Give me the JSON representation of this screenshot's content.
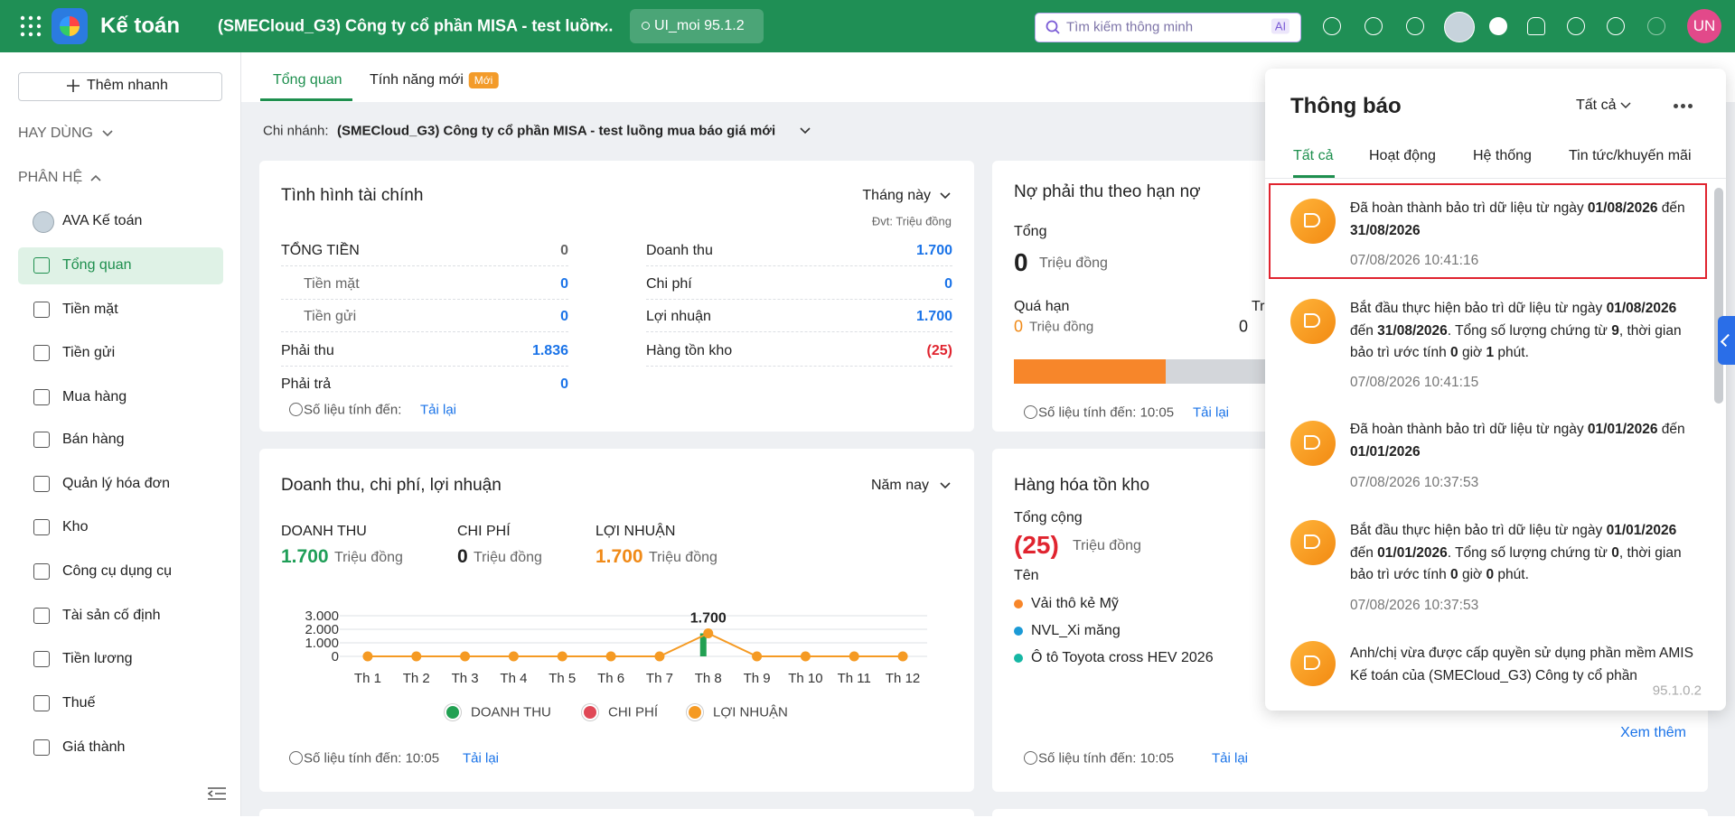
{
  "topbar": {
    "app_name": "Kế toán",
    "company": "(SMECloud_G3) Công ty cổ phần MISA - test luồn...",
    "version": "UI_moi 95.1.2",
    "search_placeholder": "Tìm kiếm thông minh",
    "ai_badge": "AI",
    "avatar": "UN"
  },
  "sidebar": {
    "quick_add": "Thêm nhanh",
    "frequent": "HAY DÙNG",
    "modules": "PHÂN HỆ",
    "items": [
      "AVA Kế toán",
      "Tổng quan",
      "Tiền mặt",
      "Tiền gửi",
      "Mua hàng",
      "Bán hàng",
      "Quản lý hóa đơn",
      "Kho",
      "Công cụ dụng cụ",
      "Tài sản cố định",
      "Tiền lương",
      "Thuế",
      "Giá thành"
    ],
    "active": 1
  },
  "tabs": {
    "items": [
      "Tổng quan",
      "Tính năng mới"
    ],
    "new_badge": "Mới"
  },
  "branch": {
    "label": "Chi nhánh:",
    "value": "(SMECloud_G3) Công ty cổ phần MISA - test luồng mua báo giá mới"
  },
  "finance": {
    "title": "Tình hình tài chính",
    "period": "Tháng này",
    "unit": "Đvt: Triệu đồng",
    "left": [
      {
        "label": "TỔNG TIỀN",
        "value": "0",
        "color": "#666666"
      },
      {
        "label": "Tiền mặt",
        "value": "0",
        "color": "#1a73e8",
        "sub": true
      },
      {
        "label": "Tiền gửi",
        "value": "0",
        "color": "#1a73e8",
        "sub": true
      },
      {
        "label": "Phải thu",
        "value": "1.836",
        "color": "#1a73e8"
      },
      {
        "label": "Phải trả",
        "value": "0",
        "color": "#1a73e8"
      }
    ],
    "right": [
      {
        "label": "Doanh thu",
        "value": "1.700",
        "color": "#1a73e8"
      },
      {
        "label": "Chi phí",
        "value": "0",
        "color": "#1a73e8"
      },
      {
        "label": "Lợi nhuận",
        "value": "1.700",
        "color": "#1a73e8"
      },
      {
        "label": "Hàng tồn kho",
        "value": "(25)",
        "color": "#e0242f"
      }
    ],
    "footer": "Số liệu tính đến:",
    "reload": "Tải lại"
  },
  "receivable": {
    "title": "Nợ phải thu theo hạn nợ",
    "total_label": "Tổng",
    "total": "0",
    "unit": "Triệu đồng",
    "overdue_label": "Quá hạn",
    "overdue": "0",
    "overdue_unit": "Triệu đồng",
    "in_term_label": "Tr",
    "in_term": "0",
    "footer": "Số liệu tính đến: 10:05",
    "reload": "Tải lại"
  },
  "revenue": {
    "title": "Doanh thu, chi phí, lợi nhuận",
    "period": "Năm nay",
    "kpis": [
      {
        "label": "DOANH THU",
        "value": "1.700",
        "unit": "Triệu đồng",
        "color": "#1e9e57"
      },
      {
        "label": "CHI PHÍ",
        "value": "0",
        "unit": "Triệu đồng",
        "color": "#212121"
      },
      {
        "label": "LỢI NHUẬN",
        "value": "1.700",
        "unit": "Triệu đồng",
        "color": "#f08a18"
      }
    ],
    "footer": "Số liệu tính đến: 10:05",
    "reload": "Tải lại"
  },
  "chart_data": {
    "type": "combo",
    "categories": [
      "Th 1",
      "Th 2",
      "Th 3",
      "Th 4",
      "Th 5",
      "Th 6",
      "Th 7",
      "Th 8",
      "Th 9",
      "Th 10",
      "Th 11",
      "Th 12"
    ],
    "series": [
      {
        "name": "DOANH THU",
        "color": "#21a052",
        "type": "bar",
        "values": [
          0,
          0,
          0,
          0,
          0,
          0,
          0,
          1700,
          0,
          0,
          0,
          0
        ]
      },
      {
        "name": "CHI PHÍ",
        "color": "#e04856",
        "type": "bar",
        "values": [
          0,
          0,
          0,
          0,
          0,
          0,
          0,
          0,
          0,
          0,
          0,
          0
        ]
      },
      {
        "name": "LỢI NHUẬN",
        "color": "#f59a23",
        "type": "line",
        "values": [
          0,
          0,
          0,
          0,
          0,
          0,
          0,
          1700,
          0,
          0,
          0,
          0
        ],
        "value_labels": [
          null,
          null,
          null,
          null,
          null,
          null,
          null,
          "1.700",
          null,
          null,
          null,
          null
        ]
      }
    ],
    "ylim": [
      0,
      3000
    ],
    "yticks": [
      0,
      {
        "value": 1000,
        "label": "1.000"
      },
      {
        "value": 2000,
        "label": "2.000"
      },
      {
        "value": 3000,
        "label": "3.000"
      }
    ],
    "grid": true
  },
  "inventory": {
    "title": "Hàng hóa tồn kho",
    "total_label": "Tổng cộng",
    "total": "(25)",
    "unit": "Triệu đồng",
    "name_header": "Tên",
    "items": [
      {
        "name": "Vải thô kẻ Mỹ",
        "color": "#f7862a"
      },
      {
        "name": "NVL_Xi măng",
        "color": "#1b9ad6"
      },
      {
        "name": "Ô tô Toyota cross HEV 2026",
        "color": "#16b7a4"
      }
    ],
    "more": "Xem thêm",
    "footer": "Số liệu tính đến: 10:05",
    "reload": "Tải lại"
  },
  "notifications": {
    "title": "Thông báo",
    "filter": "Tất cả",
    "tabs": [
      "Tất cả",
      "Hoạt động",
      "Hệ thống",
      "Tin tức/khuyến mãi"
    ],
    "active_tab": 0,
    "items": [
      {
        "segments": [
          "Đã hoàn thành bảo trì dữ liệu từ ngày ",
          "01/08/2026",
          " đến ",
          "31/08/2026"
        ],
        "time": "07/08/2026 10:41:16"
      },
      {
        "segments": [
          "Bắt đầu thực hiện bảo trì dữ liệu từ ngày ",
          "01/08/2026",
          " đến ",
          "31/08/2026",
          ". Tổng số lượng chứng từ ",
          "9",
          ", thời gian bảo trì ước tính ",
          "0",
          " giờ ",
          "1",
          " phút."
        ],
        "time": "07/08/2026 10:41:15"
      },
      {
        "segments": [
          "Đã hoàn thành bảo trì dữ liệu từ ngày ",
          "01/01/2026",
          " đến ",
          "01/01/2026"
        ],
        "time": "07/08/2026 10:37:53"
      },
      {
        "segments": [
          "Bắt đầu thực hiện bảo trì dữ liệu từ ngày ",
          "01/01/2026",
          " đến ",
          "01/01/2026",
          ". Tổng số lượng chứng từ ",
          "0",
          ", thời gian bảo trì ước tính ",
          "0",
          " giờ ",
          "0",
          " phút."
        ],
        "time": "07/08/2026 10:37:53"
      },
      {
        "segments": [
          "Anh/chị vừa được cấp quyền sử dụng phần mềm AMIS Kế toán của (SMECloud_G3) Công ty cổ phần"
        ]
      }
    ],
    "version": "95.1.0.2"
  }
}
